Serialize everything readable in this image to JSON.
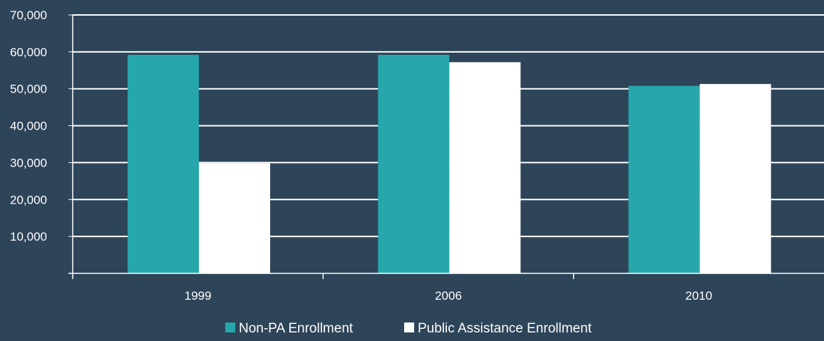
{
  "chart_data": {
    "type": "bar",
    "title": "",
    "xlabel": "",
    "ylabel": "",
    "categories": [
      "1999",
      "2006",
      "2010"
    ],
    "series": [
      {
        "name": "Non-PA Enrollment",
        "values": [
          59200,
          59200,
          50800
        ]
      },
      {
        "name": "Public Assistance Enrollment",
        "values": [
          29800,
          57200,
          51300
        ]
      }
    ],
    "ylim": [
      0,
      70000
    ],
    "yticks": [
      10000,
      20000,
      30000,
      40000,
      50000,
      60000,
      70000
    ],
    "ytick_labels": [
      "10,000",
      "20,000",
      "30,000",
      "40,000",
      "50,000",
      "60,000",
      "70,000"
    ],
    "grid": true,
    "legend": "bottom",
    "colors": {
      "background": "#2e4459",
      "series": [
        "#27a6ac",
        "#ffffff"
      ],
      "gridline": "#ffffff",
      "text": "#ffffff"
    }
  }
}
